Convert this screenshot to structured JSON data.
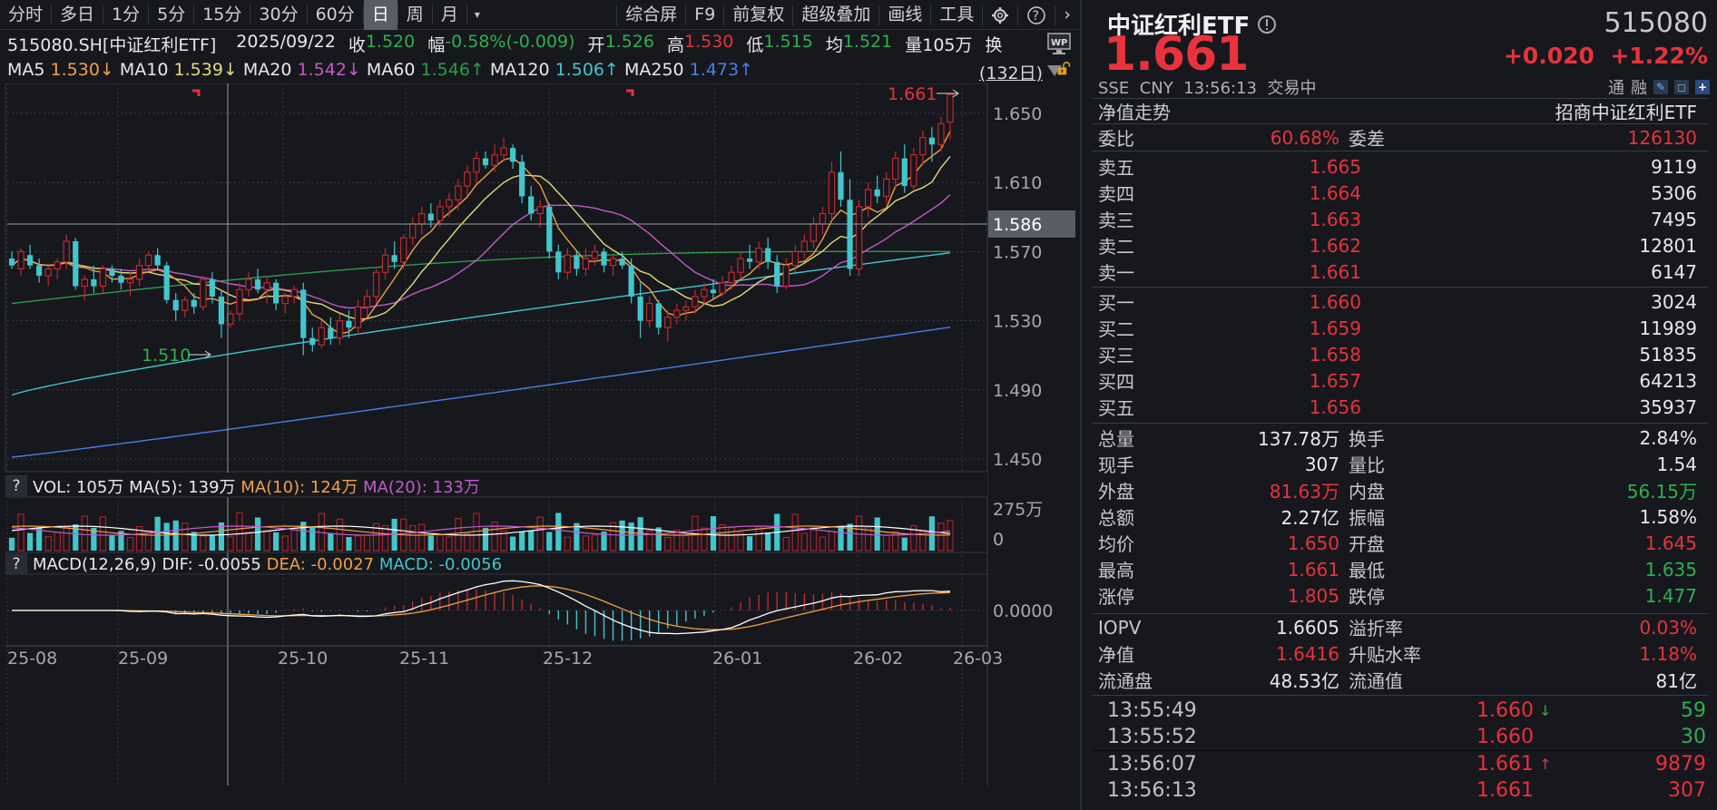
{
  "toolbar": {
    "periods": [
      "分时",
      "多日",
      "1分",
      "5分",
      "15分",
      "30分",
      "60分",
      "日",
      "周",
      "月"
    ],
    "active_period": "日",
    "right_items": [
      "综合屏",
      "F9",
      "前复权",
      "超级叠加",
      "画线",
      "工具"
    ],
    "icons": [
      "gear-icon",
      "help-icon",
      "chevron-right-icon"
    ]
  },
  "info": {
    "symbol": "515080.SH[中证红利ETF]",
    "date": "2025/09/22",
    "close_label": "收",
    "close": "1.520",
    "change_label": "幅",
    "change": "-0.58%(-0.009)",
    "open_label": "开",
    "open": "1.526",
    "high_label": "高",
    "high": "1.530",
    "low_label": "低",
    "low": "1.515",
    "avg_label": "均",
    "avg": "1.521",
    "vol_label": "量",
    "vol": "105万",
    "turnover_label": "换"
  },
  "ma": {
    "ma5": {
      "label": "MA5",
      "value": "1.530↓",
      "color": "#f0a048"
    },
    "ma10": {
      "label": "MA10",
      "value": "1.539↓",
      "color": "#e6d97a"
    },
    "ma20": {
      "label": "MA20",
      "value": "1.542↓",
      "color": "#c45ac8"
    },
    "ma60": {
      "label": "MA60",
      "value": "1.546↑",
      "color": "#2e9a4a"
    },
    "ma120": {
      "label": "MA120",
      "value": "1.506↑",
      "color": "#43c5cc"
    },
    "ma250": {
      "label": "MA250",
      "value": "1.473↑",
      "color": "#4a7ee0"
    },
    "period": "(132日)"
  },
  "price_axis": {
    "ticks": [
      "1.650",
      "1.610",
      "1.570",
      "1.530",
      "1.490",
      "1.450"
    ],
    "crosshair_value": "1.586",
    "max_label": "1.661",
    "min_label": "1.510"
  },
  "volume": {
    "title_label": "VOL: 105万",
    "ma5": "MA(5): 139万",
    "ma10": "MA(10): 124万",
    "ma20": "MA(20): 133万",
    "axis_top": "275万",
    "axis_zero": "0"
  },
  "macd": {
    "title": "MACD(12,26,9)",
    "dif": "DIF: -0.0055",
    "dea": "DEA: -0.0027",
    "macd": "MACD: -0.0056",
    "axis_zero": "0.0000"
  },
  "x_axis": [
    "25-08",
    "25-09",
    "25-10",
    "25-11",
    "25-12",
    "26-01",
    "26-02",
    "26-03"
  ],
  "quote": {
    "name": "中证红利ETF",
    "code": "515080",
    "price": "1.661",
    "change": "+0.020",
    "change_pct": "+1.22%",
    "exchange": "SSE",
    "currency": "CNY",
    "time": "13:56:13",
    "status": "交易中",
    "tags": [
      "通",
      "融"
    ],
    "nav_trend_label": "净值走势",
    "fund_name": "招商中证红利ETF"
  },
  "commission": {
    "ratio_label": "委比",
    "ratio": "60.68%",
    "diff_label": "委差",
    "diff": "126130"
  },
  "asks": [
    {
      "label": "卖五",
      "price": "1.665",
      "vol": "9119"
    },
    {
      "label": "卖四",
      "price": "1.664",
      "vol": "5306"
    },
    {
      "label": "卖三",
      "price": "1.663",
      "vol": "7495"
    },
    {
      "label": "卖二",
      "price": "1.662",
      "vol": "12801"
    },
    {
      "label": "卖一",
      "price": "1.661",
      "vol": "6147"
    }
  ],
  "bids": [
    {
      "label": "买一",
      "price": "1.660",
      "vol": "3024"
    },
    {
      "label": "买二",
      "price": "1.659",
      "vol": "11989"
    },
    {
      "label": "买三",
      "price": "1.658",
      "vol": "51835"
    },
    {
      "label": "买四",
      "price": "1.657",
      "vol": "64213"
    },
    {
      "label": "买五",
      "price": "1.656",
      "vol": "35937"
    }
  ],
  "stats": [
    {
      "l1": "总量",
      "v1": "137.78万",
      "c1": "#e8e8e8",
      "l2": "换手",
      "v2": "2.84%",
      "c2": "#e8e8e8"
    },
    {
      "l1": "现手",
      "v1": "307",
      "c1": "#e8e8e8",
      "l2": "量比",
      "v2": "1.54",
      "c2": "#e8e8e8"
    },
    {
      "l1": "外盘",
      "v1": "81.63万",
      "c1": "#e8323c",
      "l2": "内盘",
      "v2": "56.15万",
      "c2": "#2db04e"
    },
    {
      "l1": "总额",
      "v1": "2.27亿",
      "c1": "#e8e8e8",
      "l2": "振幅",
      "v2": "1.58%",
      "c2": "#e8e8e8"
    },
    {
      "l1": "均价",
      "v1": "1.650",
      "c1": "#e8323c",
      "l2": "开盘",
      "v2": "1.645",
      "c2": "#e8323c"
    },
    {
      "l1": "最高",
      "v1": "1.661",
      "c1": "#e8323c",
      "l2": "最低",
      "v2": "1.635",
      "c2": "#2db04e"
    },
    {
      "l1": "涨停",
      "v1": "1.805",
      "c1": "#e8323c",
      "l2": "跌停",
      "v2": "1.477",
      "c2": "#2db04e"
    }
  ],
  "etf_stats": [
    {
      "l1": "IOPV",
      "v1": "1.6605",
      "c1": "#e8e8e8",
      "l2": "溢折率",
      "v2": "0.03%",
      "c2": "#e8323c"
    },
    {
      "l1": "净值",
      "v1": "1.6416",
      "c1": "#e8323c",
      "l2": "升贴水率",
      "v2": "1.18%",
      "c2": "#e8323c"
    },
    {
      "l1": "流通盘",
      "v1": "48.53亿",
      "c1": "#e8e8e8",
      "l2": "流通值",
      "v2": "81亿",
      "c2": "#e8e8e8"
    }
  ],
  "trades": [
    {
      "time": "13:55:49",
      "price": "1.660",
      "arrow": "↓",
      "arrow_color": "#2db04e",
      "vol": "59",
      "vol_color": "#2db04e"
    },
    {
      "time": "13:55:52",
      "price": "1.660",
      "arrow": "",
      "arrow_color": "#2db04e",
      "vol": "30",
      "vol_color": "#2db04e"
    },
    {
      "time": "13:56:07",
      "price": "1.661",
      "arrow": "↑",
      "arrow_color": "#e8323c",
      "vol": "9879",
      "vol_color": "#e8323c"
    },
    {
      "time": "13:56:13",
      "price": "1.661",
      "arrow": "",
      "arrow_color": "#e8323c",
      "vol": "307",
      "vol_color": "#e8323c"
    }
  ],
  "colors": {
    "up": "#e8323c",
    "down": "#43c5cc",
    "background": "#16181d",
    "grid": "#3a3c44"
  },
  "chart_data": {
    "type": "candlestick",
    "title": "515080.SH 中证红利ETF 日K",
    "ylim": [
      1.44,
      1.665
    ],
    "y_ticks": [
      1.45,
      1.49,
      1.53,
      1.57,
      1.61,
      1.65
    ],
    "x_ticks": [
      "25-08",
      "25-09",
      "25-10",
      "25-11",
      "25-12",
      "26-01",
      "26-02",
      "26-03"
    ],
    "ohlc_approx": [
      [
        1.566,
        1.57,
        1.56,
        1.562
      ],
      [
        1.56,
        1.572,
        1.556,
        1.57
      ],
      [
        1.568,
        1.574,
        1.56,
        1.562
      ],
      [
        1.562,
        1.566,
        1.552,
        1.556
      ],
      [
        1.556,
        1.562,
        1.55,
        1.56
      ],
      [
        1.56,
        1.566,
        1.554,
        1.564
      ],
      [
        1.564,
        1.58,
        1.56,
        1.576
      ],
      [
        1.576,
        1.578,
        1.548,
        1.55
      ],
      [
        1.55,
        1.556,
        1.542,
        1.554
      ],
      [
        1.554,
        1.562,
        1.546,
        1.55
      ],
      [
        1.55,
        1.562,
        1.546,
        1.56
      ],
      [
        1.56,
        1.562,
        1.552,
        1.556
      ],
      [
        1.556,
        1.56,
        1.548,
        1.552
      ],
      [
        1.552,
        1.558,
        1.544,
        1.554
      ],
      [
        1.554,
        1.566,
        1.55,
        1.562
      ],
      [
        1.562,
        1.57,
        1.56,
        1.568
      ],
      [
        1.568,
        1.572,
        1.56,
        1.562
      ],
      [
        1.562,
        1.564,
        1.54,
        1.542
      ],
      [
        1.542,
        1.546,
        1.53,
        1.536
      ],
      [
        1.536,
        1.544,
        1.532,
        1.542
      ],
      [
        1.542,
        1.546,
        1.534,
        1.538
      ],
      [
        1.538,
        1.556,
        1.536,
        1.554
      ],
      [
        1.554,
        1.558,
        1.54,
        1.544
      ],
      [
        1.544,
        1.548,
        1.52,
        1.528
      ],
      [
        1.528,
        1.536,
        1.526,
        1.534
      ],
      [
        1.534,
        1.552,
        1.53,
        1.548
      ],
      [
        1.548,
        1.558,
        1.544,
        1.554
      ],
      [
        1.554,
        1.56,
        1.546,
        1.548
      ],
      [
        1.548,
        1.556,
        1.54,
        1.552
      ],
      [
        1.552,
        1.554,
        1.536,
        1.54
      ],
      [
        1.54,
        1.546,
        1.534,
        1.544
      ],
      [
        1.544,
        1.55,
        1.54,
        1.548
      ],
      [
        1.548,
        1.552,
        1.51,
        1.52
      ],
      [
        1.52,
        1.526,
        1.512,
        1.516
      ],
      [
        1.516,
        1.53,
        1.514,
        1.526
      ],
      [
        1.526,
        1.532,
        1.516,
        1.52
      ],
      [
        1.52,
        1.534,
        1.516,
        1.53
      ],
      [
        1.53,
        1.536,
        1.52,
        1.526
      ],
      [
        1.526,
        1.542,
        1.522,
        1.538
      ],
      [
        1.538,
        1.548,
        1.532,
        1.544
      ],
      [
        1.544,
        1.56,
        1.54,
        1.558
      ],
      [
        1.558,
        1.572,
        1.554,
        1.568
      ],
      [
        1.568,
        1.576,
        1.56,
        1.564
      ],
      [
        1.564,
        1.58,
        1.56,
        1.578
      ],
      [
        1.578,
        1.59,
        1.574,
        1.586
      ],
      [
        1.586,
        1.596,
        1.58,
        1.592
      ],
      [
        1.592,
        1.598,
        1.584,
        1.588
      ],
      [
        1.588,
        1.6,
        1.584,
        1.596
      ],
      [
        1.596,
        1.604,
        1.59,
        1.6
      ],
      [
        1.6,
        1.612,
        1.594,
        1.608
      ],
      [
        1.608,
        1.62,
        1.602,
        1.616
      ],
      [
        1.616,
        1.628,
        1.61,
        1.624
      ],
      [
        1.624,
        1.628,
        1.618,
        1.62
      ],
      [
        1.62,
        1.632,
        1.616,
        1.626
      ],
      [
        1.626,
        1.636,
        1.622,
        1.63
      ],
      [
        1.63,
        1.632,
        1.618,
        1.622
      ],
      [
        1.622,
        1.626,
        1.598,
        1.602
      ],
      [
        1.602,
        1.608,
        1.588,
        1.592
      ],
      [
        1.592,
        1.6,
        1.584,
        1.596
      ],
      [
        1.596,
        1.598,
        1.566,
        1.57
      ],
      [
        1.57,
        1.574,
        1.554,
        1.558
      ],
      [
        1.558,
        1.572,
        1.554,
        1.568
      ],
      [
        1.568,
        1.57,
        1.556,
        1.56
      ],
      [
        1.56,
        1.572,
        1.556,
        1.566
      ],
      [
        1.566,
        1.574,
        1.562,
        1.57
      ],
      [
        1.57,
        1.572,
        1.558,
        1.562
      ],
      [
        1.562,
        1.568,
        1.556,
        1.566
      ],
      [
        1.566,
        1.57,
        1.56,
        1.562
      ],
      [
        1.562,
        1.566,
        1.54,
        1.544
      ],
      [
        1.544,
        1.552,
        1.52,
        1.53
      ],
      [
        1.53,
        1.544,
        1.526,
        1.54
      ],
      [
        1.54,
        1.542,
        1.522,
        1.526
      ],
      [
        1.526,
        1.536,
        1.518,
        1.532
      ],
      [
        1.532,
        1.54,
        1.528,
        1.536
      ],
      [
        1.536,
        1.542,
        1.53,
        1.538
      ],
      [
        1.538,
        1.548,
        1.534,
        1.544
      ],
      [
        1.544,
        1.552,
        1.54,
        1.548
      ],
      [
        1.548,
        1.554,
        1.542,
        1.546
      ],
      [
        1.546,
        1.556,
        1.544,
        1.552
      ],
      [
        1.552,
        1.562,
        1.548,
        1.558
      ],
      [
        1.558,
        1.57,
        1.554,
        1.566
      ],
      [
        1.566,
        1.574,
        1.56,
        1.564
      ],
      [
        1.564,
        1.576,
        1.56,
        1.572
      ],
      [
        1.572,
        1.578,
        1.56,
        1.564
      ],
      [
        1.564,
        1.568,
        1.546,
        1.55
      ],
      [
        1.55,
        1.566,
        1.548,
        1.562
      ],
      [
        1.562,
        1.574,
        1.558,
        1.57
      ],
      [
        1.57,
        1.58,
        1.566,
        1.576
      ],
      [
        1.576,
        1.59,
        1.572,
        1.586
      ],
      [
        1.586,
        1.596,
        1.58,
        1.592
      ],
      [
        1.592,
        1.622,
        1.588,
        1.616
      ],
      [
        1.616,
        1.628,
        1.596,
        1.6
      ],
      [
        1.6,
        1.612,
        1.556,
        1.56
      ],
      [
        1.56,
        1.6,
        1.556,
        1.596
      ],
      [
        1.596,
        1.61,
        1.59,
        1.606
      ],
      [
        1.606,
        1.614,
        1.598,
        1.602
      ],
      [
        1.602,
        1.616,
        1.598,
        1.612
      ],
      [
        1.612,
        1.628,
        1.606,
        1.624
      ],
      [
        1.624,
        1.632,
        1.604,
        1.608
      ],
      [
        1.608,
        1.63,
        1.606,
        1.626
      ],
      [
        1.626,
        1.64,
        1.62,
        1.636
      ],
      [
        1.636,
        1.642,
        1.622,
        1.632
      ],
      [
        1.632,
        1.648,
        1.628,
        1.644
      ],
      [
        1.645,
        1.661,
        1.635,
        1.661
      ]
    ],
    "series_lines": [
      "MA5",
      "MA10",
      "MA20",
      "MA60",
      "MA120",
      "MA250"
    ],
    "volume_ylim": [
      0,
      275
    ],
    "volume_unit": "万",
    "macd_zero": 0.0
  }
}
